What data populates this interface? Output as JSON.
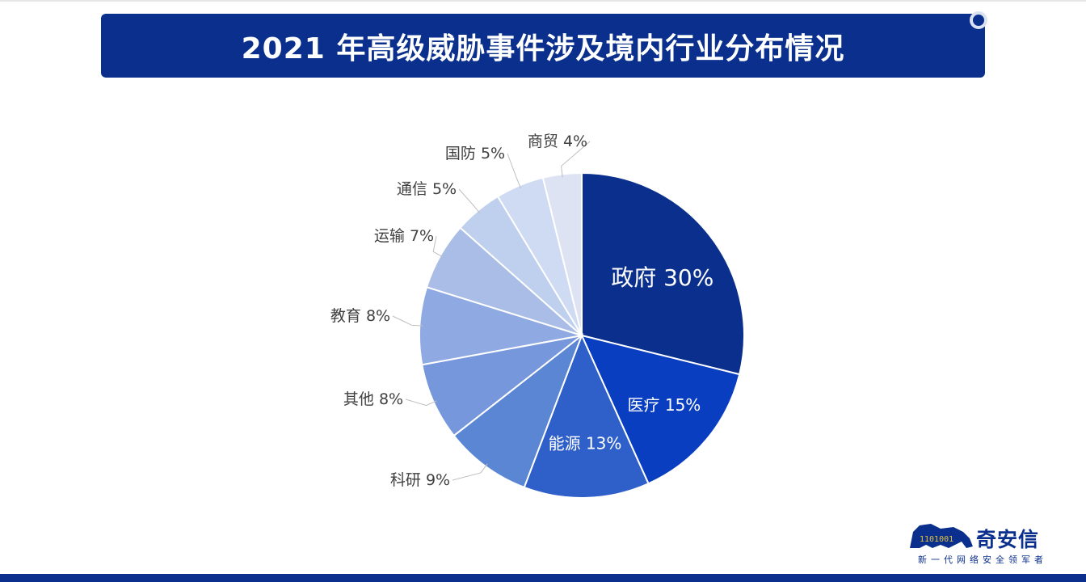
{
  "title": "2021 年高级威胁事件涉及境内行业分布情况",
  "logo": {
    "name": "奇安信",
    "slogan": "新一代网络安全领军者",
    "binary": "1101001"
  },
  "colors": {
    "banner": "#0a2f8c",
    "bottom_bar": "#0a2f8c"
  },
  "chart_data": {
    "type": "pie",
    "title": "2021 年高级威胁事件涉及境内行业分布情况",
    "start": "12 o'clock",
    "direction": "clockwise",
    "slices": [
      {
        "label": "政府",
        "value_text": "30%",
        "value": 30,
        "color": "#0a2f8c",
        "label_position": "inside"
      },
      {
        "label": "医疗",
        "value_text": "15%",
        "value": 15,
        "color": "#0a3ec0",
        "label_position": "inside"
      },
      {
        "label": "能源",
        "value_text": "13%",
        "value": 13,
        "color": "#2f60c9",
        "label_position": "inside"
      },
      {
        "label": "科研",
        "value_text": "9%",
        "value": 9,
        "color": "#5b86d4",
        "label_position": "outside"
      },
      {
        "label": "其他",
        "value_text": "8%",
        "value": 8,
        "color": "#7797dc",
        "label_position": "outside"
      },
      {
        "label": "教育",
        "value_text": "8%",
        "value": 8,
        "color": "#8faae3",
        "label_position": "outside"
      },
      {
        "label": "运输",
        "value_text": "7%",
        "value": 7,
        "color": "#a9bde6",
        "label_position": "outside"
      },
      {
        "label": "通信",
        "value_text": "5%",
        "value": 5,
        "color": "#bfcfee",
        "label_position": "outside"
      },
      {
        "label": "国防",
        "value_text": "5%",
        "value": 5,
        "color": "#cfdaf3",
        "label_position": "outside"
      },
      {
        "label": "商贸",
        "value_text": "4%",
        "value": 4,
        "color": "#dde3f3",
        "label_position": "outside"
      }
    ]
  }
}
